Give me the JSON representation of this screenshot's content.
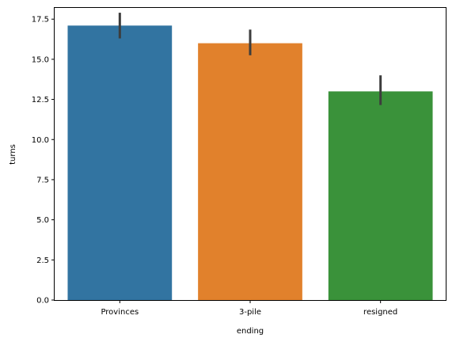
{
  "chart_data": {
    "type": "bar",
    "title": "",
    "xlabel": "ending",
    "ylabel": "turns",
    "categories": [
      "Provinces",
      "3-pile",
      "resigned"
    ],
    "values": [
      17.1,
      16.0,
      13.0
    ],
    "error_bars": [
      {
        "low": 16.3,
        "high": 17.9
      },
      {
        "low": 15.25,
        "high": 16.85
      },
      {
        "low": 12.15,
        "high": 14.0
      }
    ],
    "colors": [
      "#3274a1",
      "#e1812c",
      "#3a923a"
    ],
    "error_bar_color": "#3d3d3d",
    "ylim": [
      0,
      18.2
    ],
    "yticks": [
      0.0,
      2.5,
      5.0,
      7.5,
      10.0,
      12.5,
      15.0,
      17.5
    ],
    "ytick_labels": [
      "0.0",
      "2.5",
      "5.0",
      "7.5",
      "10.0",
      "12.5",
      "15.0",
      "17.5"
    ],
    "grid": false,
    "legend": "none"
  }
}
